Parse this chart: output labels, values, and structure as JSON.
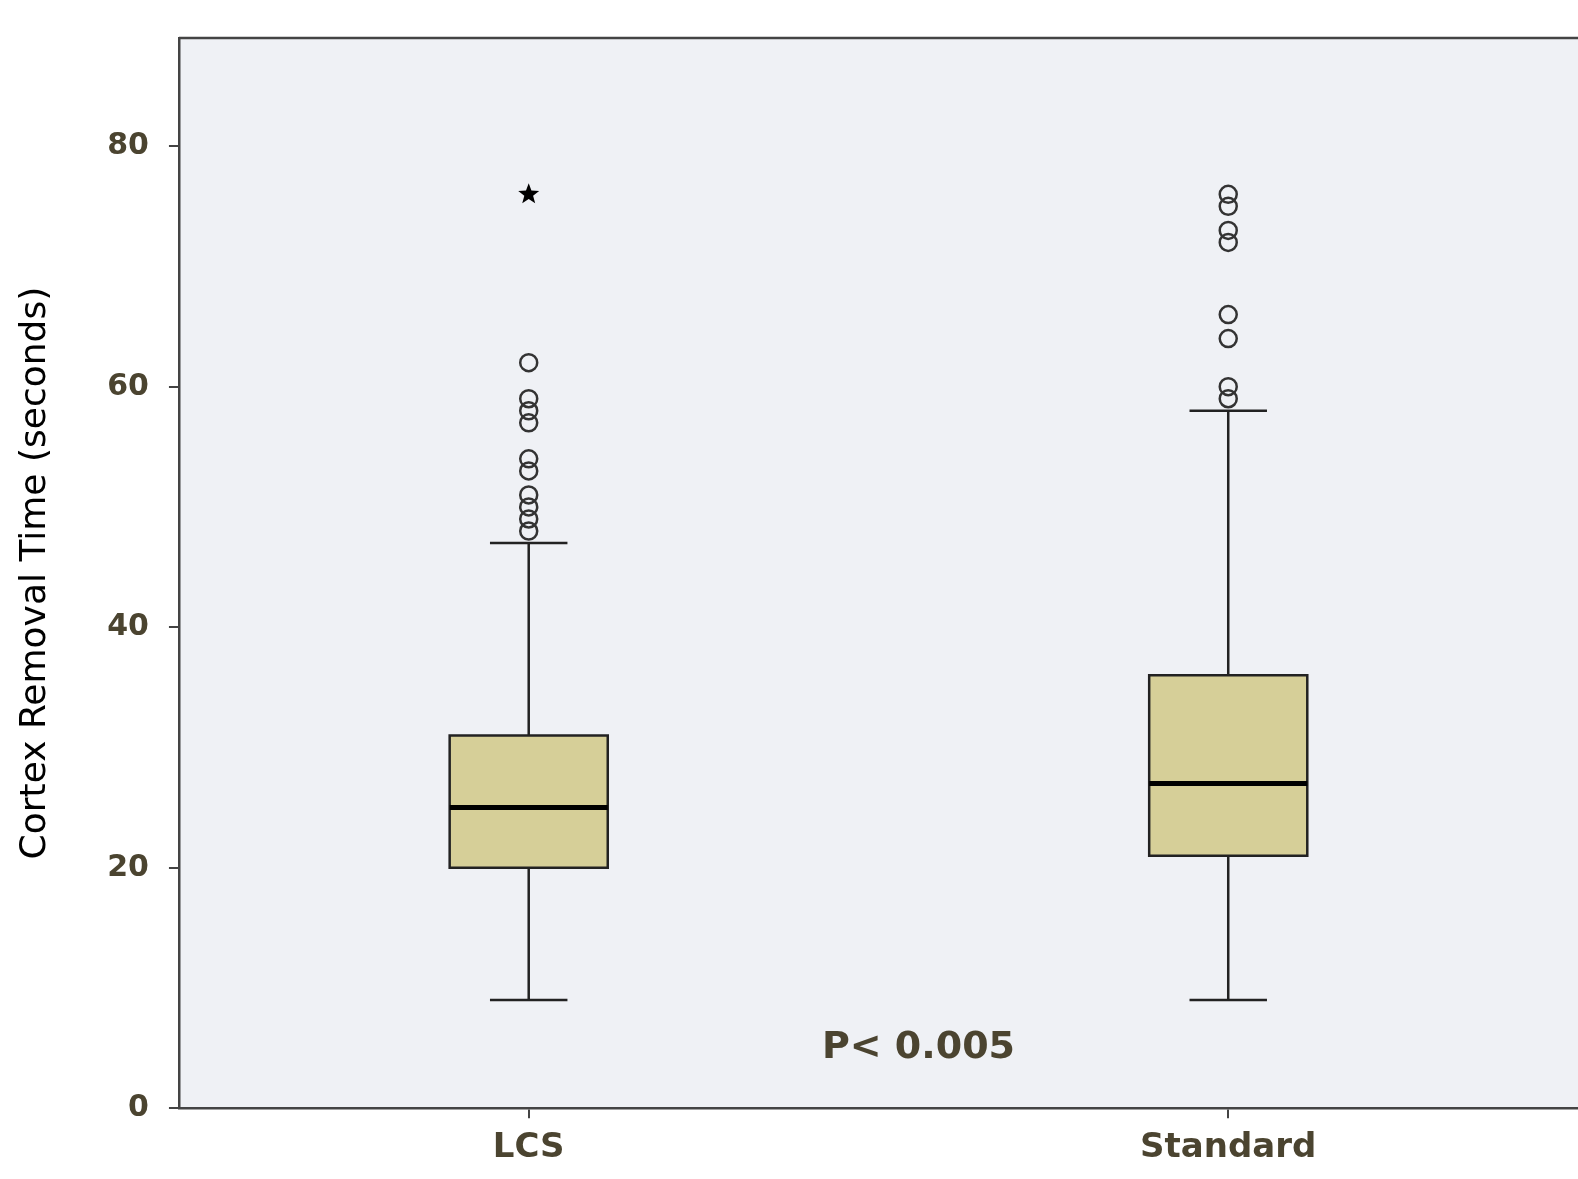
{
  "chart_data": {
    "type": "box",
    "ylabel": "Cortex Removal Time (seconds)",
    "categories": [
      "LCS",
      "Standard"
    ],
    "ylim": [
      0,
      89
    ],
    "yticks": [
      0,
      20,
      40,
      60,
      80
    ],
    "annotations": [
      "P< 0.005"
    ],
    "series": [
      {
        "color": "#d6cf98",
        "boxes": [
          {
            "low": 9,
            "q1": 20,
            "median": 25,
            "q3": 31,
            "high": 47,
            "outliers": [
              62,
              59,
              58,
              57,
              54,
              53,
              51,
              50,
              49,
              48
            ]
          },
          {
            "low": 9,
            "q1": 21,
            "median": 27,
            "q3": 36,
            "high": 58,
            "outliers": [
              76,
              75,
              73,
              72,
              66,
              64,
              60,
              59
            ]
          }
        ]
      },
      {
        "type": "scatter",
        "marker": "star",
        "color": "#000000",
        "x": [
          "LCS"
        ],
        "values": [
          76
        ]
      }
    ]
  }
}
